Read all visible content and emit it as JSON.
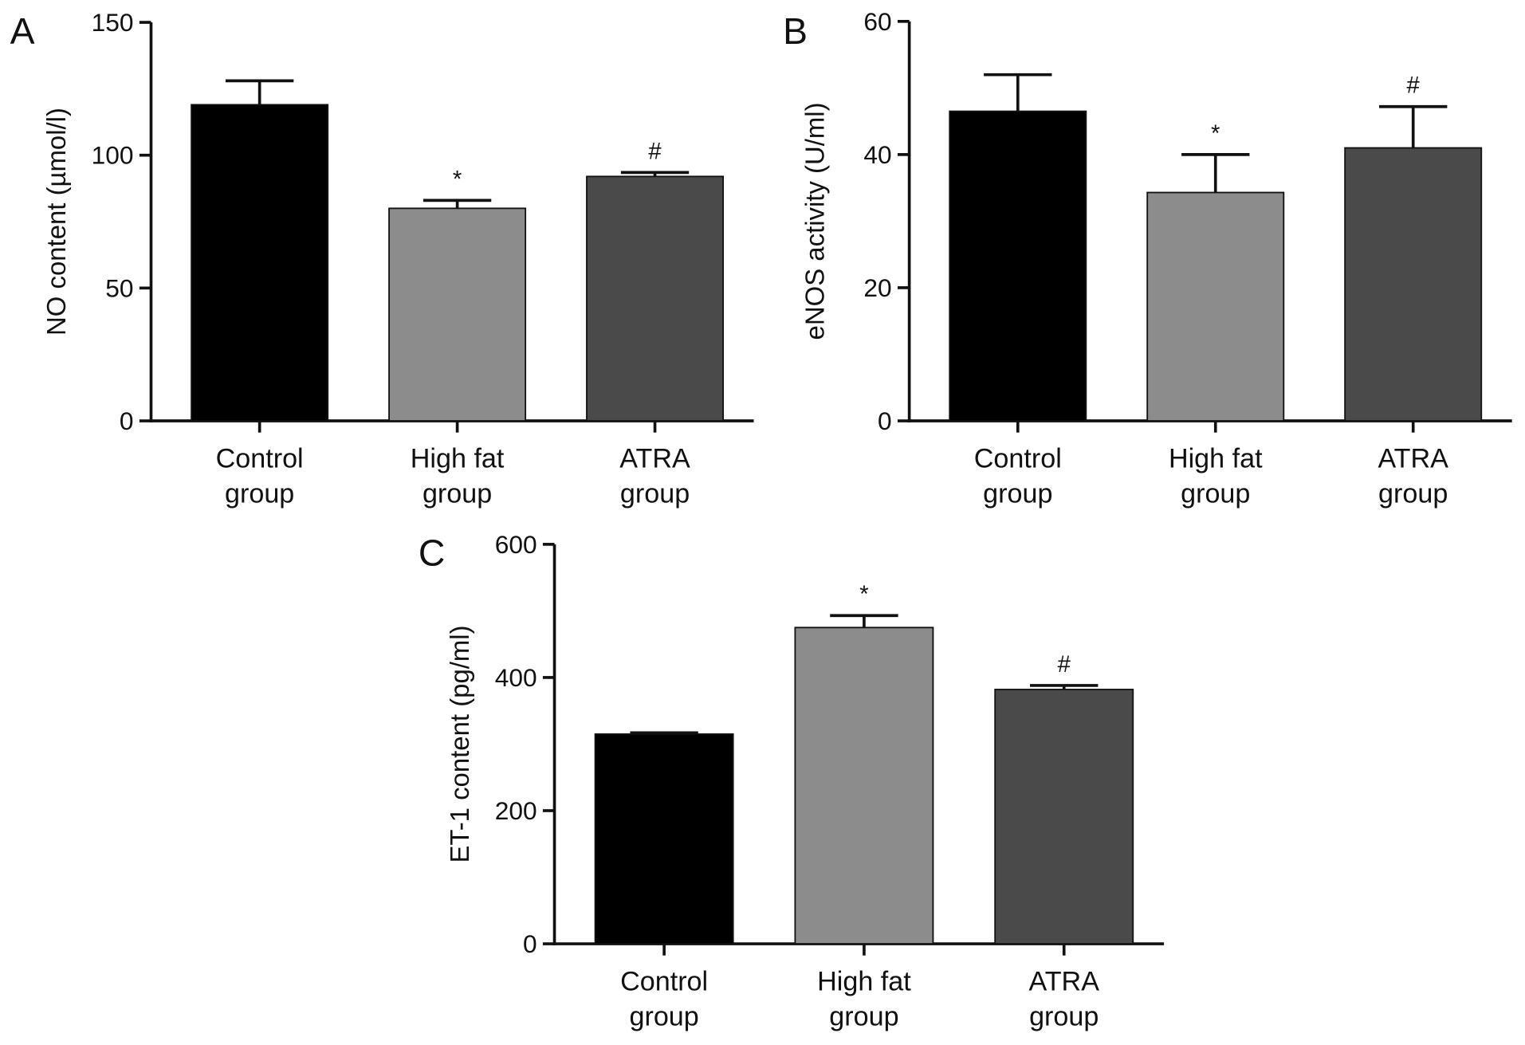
{
  "chart_data": [
    {
      "type": "bar",
      "panel": "A",
      "ylabel": "NO content (µmol/l)",
      "categories": [
        "Control group",
        "High fat group",
        "ATRA group"
      ],
      "series": [
        {
          "values": [
            119,
            80,
            92
          ],
          "errors": [
            9,
            3,
            1.5
          ],
          "colors": [
            "#000000",
            "#8c8c8c",
            "#4a4a4a"
          ],
          "annotations": [
            null,
            "*",
            "#"
          ]
        }
      ],
      "ylim": [
        0,
        150
      ],
      "yticks": [
        0,
        50,
        100,
        150
      ]
    },
    {
      "type": "bar",
      "panel": "B",
      "ylabel": "eNOS activity (U/ml)",
      "categories": [
        "Control group",
        "High fat group",
        "ATRA group"
      ],
      "series": [
        {
          "values": [
            46.5,
            34.3,
            41
          ],
          "errors": [
            5.5,
            5.7,
            6.2
          ],
          "colors": [
            "#000000",
            "#8c8c8c",
            "#4a4a4a"
          ],
          "annotations": [
            null,
            "*",
            "#"
          ]
        }
      ],
      "ylim": [
        0,
        60
      ],
      "yticks": [
        0,
        20,
        40,
        60
      ]
    },
    {
      "type": "bar",
      "panel": "C",
      "ylabel": "ET-1 content (pg/ml)",
      "categories": [
        "Control group",
        "High fat group",
        "ATRA group"
      ],
      "series": [
        {
          "values": [
            315,
            475,
            382
          ],
          "errors": [
            2,
            18,
            6
          ],
          "colors": [
            "#000000",
            "#8c8c8c",
            "#4a4a4a"
          ],
          "annotations": [
            null,
            "*",
            "#"
          ]
        }
      ],
      "ylim": [
        0,
        600
      ],
      "yticks": [
        0,
        200,
        400,
        600
      ]
    }
  ]
}
